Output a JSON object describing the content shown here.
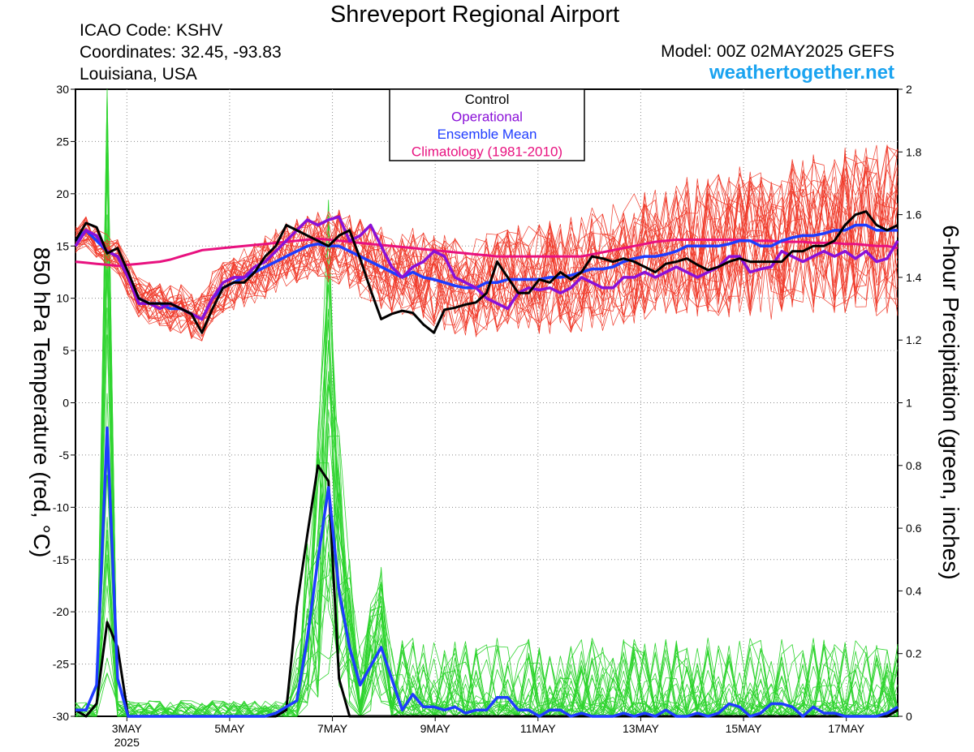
{
  "header": {
    "title": "Shreveport Regional Airport",
    "icao": "ICAO Code: KSHV",
    "coordinates": "Coordinates: 32.45, -93.83",
    "region": "Louisiana, USA",
    "model": "Model: 00Z 02MAY2025 GEFS",
    "site": "weathertogether.net"
  },
  "chart_data": {
    "type": "line",
    "title": "Shreveport Regional Airport",
    "ylabel_left": "850 hPa Temperature (red, °C)",
    "ylabel_right": "6-hour Precipitation (green, inches)",
    "ylim_left": [
      -30,
      30
    ],
    "ylim_right": [
      0,
      2
    ],
    "yticks_left": [
      "30",
      "25",
      "20",
      "15",
      "10",
      "5",
      "0",
      "-5",
      "-10",
      "-15",
      "-20",
      "-25",
      "-30"
    ],
    "yticks_right": [
      "2",
      "1.8",
      "1.6",
      "1.4",
      "1.2",
      "1",
      "0.8",
      "0.6",
      "0.4",
      "0.2",
      "0"
    ],
    "x_start_day": 2.0,
    "x_end_day": 18.0,
    "xticks": [
      {
        "day": 3,
        "label": "3MAY",
        "sublabel": "2025"
      },
      {
        "day": 5,
        "label": "5MAY",
        "sublabel": ""
      },
      {
        "day": 7,
        "label": "7MAY",
        "sublabel": ""
      },
      {
        "day": 9,
        "label": "9MAY",
        "sublabel": ""
      },
      {
        "day": 11,
        "label": "11MAY",
        "sublabel": ""
      },
      {
        "day": 13,
        "label": "13MAY",
        "sublabel": ""
      },
      {
        "day": 15,
        "label": "15MAY",
        "sublabel": ""
      },
      {
        "day": 17,
        "label": "17MAY",
        "sublabel": ""
      }
    ],
    "legend": {
      "placement": "top-center",
      "entries": [
        {
          "label": "Control",
          "color": "#000000"
        },
        {
          "label": "Operational",
          "color": "#8a10d8"
        },
        {
          "label": "Ensemble Mean",
          "color": "#1e3cff"
        },
        {
          "label": "Climatology (1981-2010)",
          "color": "#e8117f"
        }
      ]
    },
    "colors": {
      "members_temp": "#f03a2a",
      "members_precip": "#2ed42e",
      "control": "#000000",
      "operational": "#8a10d8",
      "mean": "#1e3cff",
      "climatology": "#e8117f"
    },
    "series": {
      "control_temp": [
        15.5,
        17.2,
        16.8,
        14.3,
        14.8,
        12.5,
        10.0,
        9.5,
        9.5,
        9.5,
        9.0,
        8.5,
        6.7,
        9.0,
        11.0,
        11.5,
        11.5,
        12.5,
        14.0,
        15.0,
        17.0,
        16.5,
        16.0,
        15.5,
        15.0,
        16.0,
        16.5,
        13.8,
        10.8,
        8.0,
        8.5,
        8.8,
        8.6,
        7.5,
        6.7,
        8.9,
        9.1,
        9.4,
        9.6,
        10.5,
        13.5,
        12.0,
        10.5,
        10.5,
        11.8,
        11.5,
        12.5,
        11.8,
        12.5,
        14.0,
        13.8,
        13.5,
        13.8,
        13.5,
        13.0,
        12.5,
        13.3,
        13.5,
        13.8,
        13.2,
        12.7,
        13.0,
        13.5,
        13.8,
        13.5,
        13.5,
        13.5,
        13.5,
        14.5,
        14.5,
        15.0,
        15.0,
        15.5,
        17.0,
        18.0,
        18.3,
        17.0,
        16.5,
        17.0
      ],
      "operational_temp": [
        15.0,
        16.5,
        16.0,
        14.5,
        14.0,
        12.0,
        9.5,
        9.5,
        9.0,
        9.5,
        9.0,
        8.5,
        8.0,
        10.0,
        11.5,
        12.0,
        12.0,
        13.0,
        13.5,
        14.5,
        15.5,
        16.5,
        17.5,
        17.0,
        17.5,
        17.8,
        15.5,
        16.0,
        17.0,
        15.0,
        13.0,
        12.0,
        13.0,
        13.5,
        14.5,
        14.0,
        12.0,
        11.5,
        11.0,
        10.0,
        9.5,
        9.0,
        10.5,
        11.0,
        10.8,
        11.0,
        10.5,
        11.0,
        12.0,
        11.5,
        11.0,
        11.0,
        12.0,
        12.0,
        12.5,
        12.0,
        12.5,
        13.0,
        12.5,
        12.0,
        12.5,
        13.0,
        14.0,
        14.0,
        12.5,
        12.8,
        13.0,
        14.5,
        14.0,
        13.5,
        14.0,
        14.5,
        14.0,
        14.5,
        13.8,
        14.5,
        13.5,
        13.8,
        15.5
      ],
      "mean_temp": [
        15.5,
        16.5,
        15.5,
        14.5,
        14.0,
        12.0,
        10.0,
        9.5,
        9.5,
        9.0,
        9.0,
        8.5,
        8.0,
        10.0,
        11.0,
        11.5,
        12.0,
        12.5,
        13.0,
        13.5,
        14.0,
        14.5,
        15.0,
        15.2,
        15.0,
        15.0,
        14.5,
        14.0,
        13.5,
        13.0,
        12.5,
        12.0,
        12.5,
        12.0,
        11.8,
        11.5,
        11.2,
        11.0,
        11.0,
        11.5,
        11.5,
        11.8,
        11.8,
        11.8,
        11.8,
        12.0,
        12.0,
        12.2,
        12.5,
        12.8,
        12.8,
        13.0,
        13.5,
        13.8,
        14.0,
        14.0,
        14.2,
        14.5,
        15.0,
        15.0,
        15.0,
        15.0,
        15.2,
        15.5,
        15.5,
        15.0,
        15.0,
        15.5,
        15.8,
        16.0,
        16.0,
        16.2,
        16.5,
        16.5,
        17.0,
        17.0,
        16.5,
        16.5,
        16.5
      ],
      "climatology_temp": [
        13.5,
        13.4,
        13.3,
        13.2,
        13.1,
        13.2,
        13.3,
        13.4,
        13.5,
        13.7,
        14.0,
        14.3,
        14.6,
        14.7,
        14.8,
        14.9,
        15.0,
        15.1,
        15.2,
        15.3,
        15.4,
        15.5,
        15.6,
        15.7,
        15.6,
        15.5,
        15.4,
        15.3,
        15.2,
        15.1,
        15.0,
        14.9,
        14.8,
        14.7,
        14.6,
        14.5,
        14.4,
        14.3,
        14.2,
        14.1,
        14.0,
        14.0,
        14.0,
        14.0,
        14.0,
        14.0,
        14.0,
        14.0,
        14.0,
        14.2,
        14.4,
        14.6,
        14.8,
        15.0,
        15.2,
        15.4,
        15.5,
        15.6,
        15.6,
        15.6,
        15.6,
        15.6,
        15.6,
        15.6,
        15.5,
        15.5,
        15.5,
        15.4,
        15.4,
        15.4,
        15.3,
        15.3,
        15.3,
        15.2,
        15.2,
        15.1,
        15.0,
        15.0,
        14.8
      ],
      "control_precip": [
        0.02,
        0.0,
        0.04,
        0.3,
        0.22,
        0.0,
        0.0,
        0.0,
        0.0,
        0.0,
        0.0,
        0.0,
        0.0,
        0.0,
        0.0,
        0.0,
        0.0,
        0.0,
        0.0,
        0.0,
        0.02,
        0.35,
        0.58,
        0.8,
        0.75,
        0.12,
        0.0,
        0.0,
        0.0,
        0.0,
        0.0,
        0.0,
        0.0,
        0.0,
        0.0,
        0.0,
        0.0,
        0.0,
        0.0,
        0.0,
        0.0,
        0.0,
        0.0,
        0.0,
        0.0,
        0.0,
        0.0,
        0.0,
        0.0,
        0.0,
        0.0,
        0.0,
        0.0,
        0.0,
        0.0,
        0.0,
        0.0,
        0.0,
        0.0,
        0.0,
        0.0,
        0.0,
        0.0,
        0.0,
        0.0,
        0.0,
        0.0,
        0.0,
        0.0,
        0.0,
        0.0,
        0.0,
        0.0,
        0.0,
        0.0,
        0.0,
        0.0,
        0.0,
        0.02
      ],
      "mean_precip": [
        0.02,
        0.02,
        0.1,
        0.92,
        0.12,
        0.0,
        0.0,
        0.0,
        0.0,
        0.0,
        0.0,
        0.0,
        0.0,
        0.0,
        0.0,
        0.0,
        0.0,
        0.0,
        0.0,
        0.01,
        0.03,
        0.05,
        0.25,
        0.5,
        0.73,
        0.4,
        0.22,
        0.1,
        0.16,
        0.22,
        0.12,
        0.02,
        0.07,
        0.03,
        0.03,
        0.02,
        0.03,
        0.01,
        0.02,
        0.02,
        0.06,
        0.06,
        0.02,
        0.02,
        0.0,
        0.02,
        0.02,
        0.0,
        0.01,
        0.0,
        0.0,
        0.0,
        0.01,
        0.0,
        0.01,
        0.0,
        0.02,
        0.0,
        0.0,
        0.01,
        0.0,
        0.01,
        0.04,
        0.03,
        0.0,
        0.01,
        0.04,
        0.04,
        0.03,
        0.0,
        0.03,
        0.01,
        0.01,
        0.0,
        0.0,
        0.0,
        0.0,
        0.01,
        0.03
      ]
    }
  }
}
